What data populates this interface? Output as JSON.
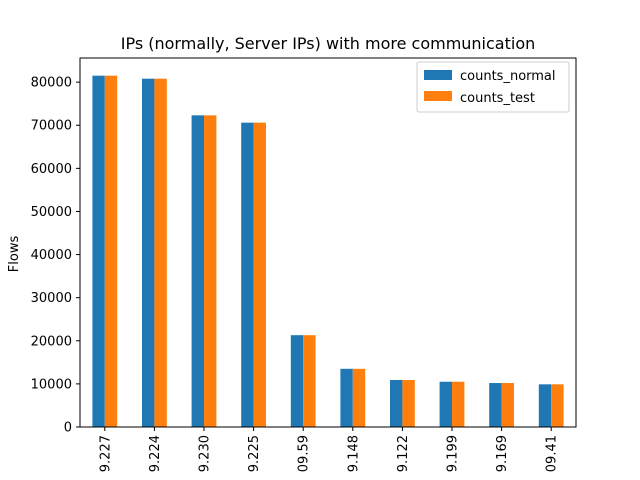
{
  "chart_data": {
    "type": "bar",
    "title": "IPs (normally, Server IPs) with more communication",
    "xlabel": "",
    "ylabel": "Flows",
    "categories": [
      "9.227",
      "9.224",
      "9.230",
      "9.225",
      "09.59",
      "9.148",
      "9.122",
      "9.199",
      "9.169",
      "09.41"
    ],
    "series": [
      {
        "name": "counts_normal",
        "color": "#1f77b4",
        "values": [
          81500,
          80800,
          72300,
          70600,
          21300,
          13500,
          10900,
          10500,
          10200,
          9900
        ]
      },
      {
        "name": "counts_test",
        "color": "#ff7f0e",
        "values": [
          81500,
          80800,
          72300,
          70600,
          21300,
          13500,
          10900,
          10500,
          10200,
          9900
        ]
      }
    ],
    "ylim": [
      0,
      85600
    ],
    "yticks": [
      0,
      10000,
      20000,
      30000,
      40000,
      50000,
      60000,
      70000,
      80000
    ],
    "grid": false,
    "legend_position": "top-right"
  }
}
